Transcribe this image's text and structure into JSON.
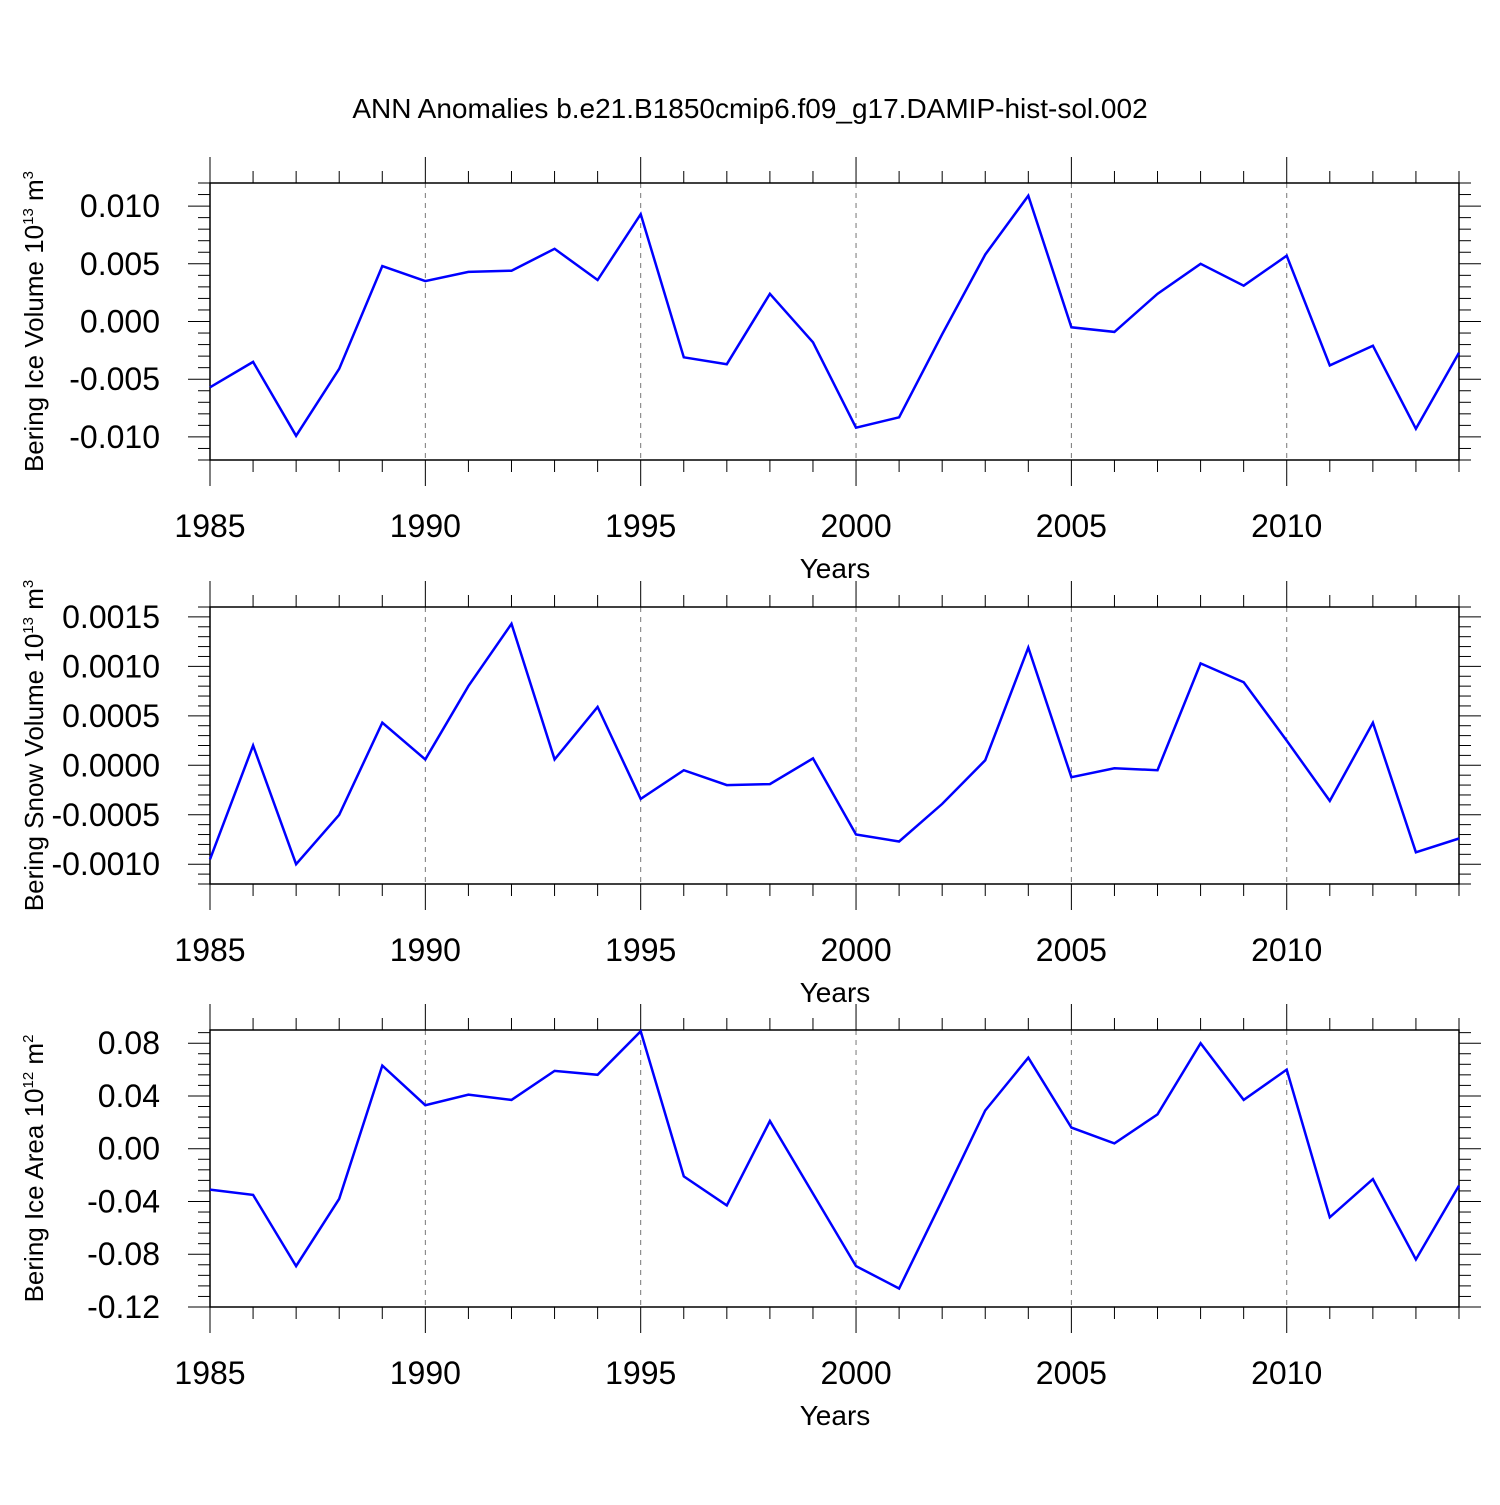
{
  "title": "ANN Anomalies b.e21.B1850cmip6.f09_g17.DAMIP-hist-sol.002",
  "line_color": "#0000ff",
  "chart_data": [
    {
      "type": "line",
      "ylabel": {
        "prefix": "Bering Ice Volume 10",
        "exponent": "13",
        "unit": " m",
        "unit_exponent": "3"
      },
      "xlabel": "Years",
      "xlim": [
        1985,
        2014
      ],
      "ylim": [
        -0.012,
        0.012
      ],
      "xticks": [
        1985,
        1990,
        1995,
        2000,
        2005,
        2010
      ],
      "xtick_labels": [
        "1985",
        "1990",
        "1995",
        "2000",
        "2005",
        "2010"
      ],
      "yticks": [
        -0.01,
        -0.005,
        0.0,
        0.005,
        0.01
      ],
      "ytick_labels": [
        "-0.010",
        "-0.005",
        "0.000",
        "0.005",
        "0.010"
      ],
      "grid": "dashed vertical at major x ticks",
      "series": [
        {
          "name": "Bering Ice Volume",
          "x": [
            1985,
            1986,
            1987,
            1988,
            1989,
            1990,
            1991,
            1992,
            1993,
            1994,
            1995,
            1996,
            1997,
            1998,
            1999,
            2000,
            2001,
            2002,
            2003,
            2004,
            2005,
            2006,
            2007,
            2008,
            2009,
            2010,
            2011,
            2012,
            2013,
            2014
          ],
          "values": [
            -0.0057,
            -0.0035,
            -0.0099,
            -0.0041,
            0.0048,
            0.0035,
            0.0043,
            0.0044,
            0.0063,
            0.0036,
            0.0093,
            -0.0031,
            -0.0037,
            0.0024,
            -0.0018,
            -0.0092,
            -0.0083,
            -0.0011,
            0.0058,
            0.0109,
            -0.0005,
            -0.0009,
            0.0024,
            0.005,
            0.0031,
            0.0057,
            -0.0038,
            -0.0021,
            -0.0093,
            -0.0027
          ]
        }
      ]
    },
    {
      "type": "line",
      "ylabel": {
        "prefix": "Bering Snow Volume 10",
        "exponent": "13",
        "unit": " m",
        "unit_exponent": "3"
      },
      "xlabel": "Years",
      "xlim": [
        1985,
        2014
      ],
      "ylim": [
        -0.0012,
        0.0016
      ],
      "xticks": [
        1985,
        1990,
        1995,
        2000,
        2005,
        2010
      ],
      "xtick_labels": [
        "1985",
        "1990",
        "1995",
        "2000",
        "2005",
        "2010"
      ],
      "yticks": [
        -0.001,
        -0.0005,
        0.0,
        0.0005,
        0.001,
        0.0015
      ],
      "ytick_labels": [
        "-0.0010",
        "-0.0005",
        "0.0000",
        "0.0005",
        "0.0010",
        "0.0015"
      ],
      "grid": "dashed vertical at major x ticks",
      "series": [
        {
          "name": "Bering Snow Volume",
          "x": [
            1985,
            1986,
            1987,
            1988,
            1989,
            1990,
            1991,
            1992,
            1993,
            1994,
            1995,
            1996,
            1997,
            1998,
            1999,
            2000,
            2001,
            2002,
            2003,
            2004,
            2005,
            2006,
            2007,
            2008,
            2009,
            2010,
            2011,
            2012,
            2013,
            2014
          ],
          "values": [
            -0.00095,
            0.0002,
            -0.001,
            -0.0005,
            0.00043,
            6e-05,
            0.0008,
            0.00143,
            6e-05,
            0.00059,
            -0.00034,
            -5e-05,
            -0.0002,
            -0.00019,
            7e-05,
            -0.0007,
            -0.00077,
            -0.00039,
            5e-05,
            0.00119,
            -0.00012,
            -3e-05,
            -5e-05,
            0.00103,
            0.00084,
            0.00025,
            -0.00036,
            0.00043,
            -0.00088,
            -0.00074
          ]
        }
      ]
    },
    {
      "type": "line",
      "ylabel": {
        "prefix": "Bering Ice Area 10",
        "exponent": "12",
        "unit": " m",
        "unit_exponent": "2"
      },
      "xlabel": "Years",
      "xlim": [
        1985,
        2014
      ],
      "ylim": [
        -0.12,
        0.09
      ],
      "xticks": [
        1985,
        1990,
        1995,
        2000,
        2005,
        2010
      ],
      "xtick_labels": [
        "1985",
        "1990",
        "1995",
        "2000",
        "2005",
        "2010"
      ],
      "yticks": [
        -0.12,
        -0.08,
        -0.04,
        0.0,
        0.04,
        0.08
      ],
      "ytick_labels": [
        "-0.12",
        "-0.08",
        "-0.04",
        "0.00",
        "0.04",
        "0.08"
      ],
      "grid": "dashed vertical at major x ticks",
      "series": [
        {
          "name": "Bering Ice Area",
          "x": [
            1985,
            1986,
            1987,
            1988,
            1989,
            1990,
            1991,
            1992,
            1993,
            1994,
            1995,
            1996,
            1997,
            1998,
            1999,
            2000,
            2001,
            2002,
            2003,
            2004,
            2005,
            2006,
            2007,
            2008,
            2009,
            2010,
            2011,
            2012,
            2013,
            2014
          ],
          "values": [
            -0.031,
            -0.035,
            -0.089,
            -0.038,
            0.063,
            0.033,
            0.041,
            0.037,
            0.059,
            0.056,
            0.089,
            -0.021,
            -0.043,
            0.021,
            -0.034,
            -0.089,
            -0.106,
            -0.039,
            0.029,
            0.069,
            0.016,
            0.004,
            0.026,
            0.08,
            0.037,
            0.06,
            -0.052,
            -0.023,
            -0.084,
            -0.028
          ]
        }
      ]
    }
  ]
}
